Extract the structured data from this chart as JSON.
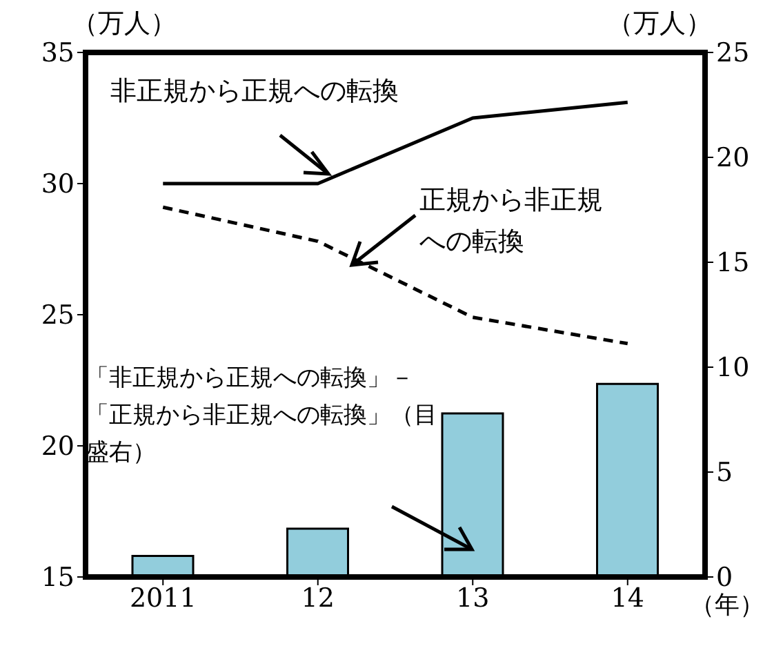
{
  "chart_data": {
    "type": "line",
    "ylabel": "（万人）",
    "y2label": "（万人）",
    "xlabel": "（年）",
    "categories": [
      "2011",
      "12",
      "13",
      "14"
    ],
    "ylim": [
      15,
      35
    ],
    "yticks": [
      15,
      20,
      25,
      30,
      35
    ],
    "y2lim": [
      0,
      25
    ],
    "y2ticks": [
      0,
      5,
      10,
      15,
      20,
      25
    ],
    "series": [
      {
        "name": "「非正規から正規への転換」－「正規から非正規への転換」（目盛右）",
        "type": "bar",
        "axis": "y2",
        "color": "#92cddc",
        "values": [
          1.0,
          2.3,
          7.8,
          9.2
        ]
      },
      {
        "name": "非正規から正規への転換",
        "color": "#000000",
        "line_style": "solid",
        "values": [
          30.0,
          30.0,
          32.5,
          33.1
        ]
      },
      {
        "name": "正規から非正規への転換",
        "color": "#000000",
        "line_style": "dashed",
        "values": [
          29.1,
          27.8,
          24.9,
          23.9
        ]
      }
    ],
    "grid": false,
    "legend": false,
    "marker": "none"
  }
}
